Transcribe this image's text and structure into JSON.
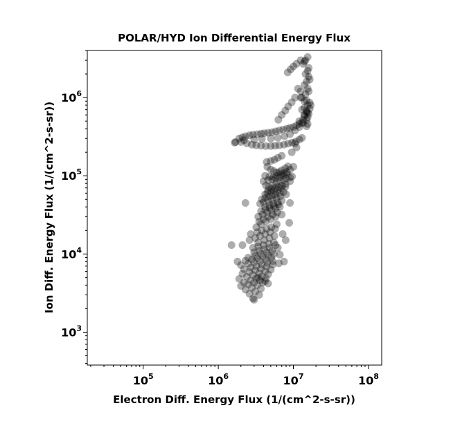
{
  "chart_data": {
    "type": "scatter",
    "title": "POLAR/HYD  Ion Differential Energy Flux",
    "xlabel": "Electron Diff. Energy Flux (1/(cm^2-s-sr))",
    "ylabel": "Ion Diff. Energy Flux (1/(cm^2-s-sr))",
    "xscale": "log",
    "yscale": "log",
    "xlim": [
      18000,
      150000000
    ],
    "ylim": [
      380,
      4000000
    ],
    "grid": false,
    "legend": "none",
    "marker_color": "#000000",
    "marker_alpha": 0.32,
    "xticks": [
      {
        "value": 100000,
        "base": "10",
        "exp": "5"
      },
      {
        "value": 1000000,
        "base": "10",
        "exp": "6"
      },
      {
        "value": 10000000,
        "base": "10",
        "exp": "7"
      },
      {
        "value": 100000000,
        "base": "10",
        "exp": "8"
      }
    ],
    "yticks": [
      {
        "value": 1000,
        "base": "10",
        "exp": "3"
      },
      {
        "value": 10000,
        "base": "10",
        "exp": "4"
      },
      {
        "value": 100000,
        "base": "10",
        "exp": "5"
      },
      {
        "value": 1000000,
        "base": "10",
        "exp": "6"
      }
    ],
    "x": [
      1700000,
      1900000,
      2100000,
      2300000,
      2600000,
      2900000,
      3300000,
      3700000,
      4100000,
      4600000,
      5200000,
      5800000,
      6500000,
      7300000,
      8200000,
      9000000,
      10000000,
      11000000,
      12000000,
      13000000,
      1650000,
      2000000,
      2400000,
      2800000,
      3200000,
      3700000,
      4300000,
      5000000,
      5700000,
      6500000,
      7500000,
      8500000,
      9600000,
      10800000,
      12000000,
      13000000,
      2200000,
      3000000,
      3800000,
      5000000,
      6200000,
      7600000,
      9000000,
      10500000,
      12000000,
      13500000,
      15000000,
      15500000,
      16000000,
      15000000,
      14000000,
      15500000,
      16500000,
      15000000,
      13000000,
      14500000,
      16000000,
      15500000,
      14000000,
      15000000,
      16500000,
      16000000,
      14500000,
      15500000,
      16000000,
      13500000,
      14500000,
      15500000,
      14000000,
      12500000,
      11000000,
      10000000,
      9200000,
      8400000,
      13000000,
      15000000,
      14000000,
      13500000,
      15500000,
      15000000,
      12000000,
      14000000,
      15500000,
      16500000,
      17000000,
      14000000,
      12500000,
      11500000,
      12500000,
      10500000,
      9500000,
      8500000,
      7800000,
      7000000,
      6300000,
      4500000,
      5000000,
      5500000,
      6000000,
      6500000,
      7000000,
      7800000,
      8500000,
      4200000,
      4800000,
      5400000,
      6000000,
      6800000,
      7500000,
      8200000,
      9000000,
      10000000,
      4000000,
      4600000,
      5200000,
      5800000,
      6600000,
      7400000,
      8200000,
      4400000,
      5000000,
      5600000,
      6200000,
      7000000,
      9500000,
      11000000,
      10500000,
      4300000,
      4700000,
      5300000,
      5900000,
      6500000,
      7300000,
      8000000,
      9000000,
      9600000,
      4600000,
      5100000,
      5700000,
      6400000,
      7100000,
      7900000,
      4200000,
      4500000,
      5000000,
      5500000,
      6200000,
      6900000,
      7800000,
      9000000,
      3800000,
      4200000,
      4700000,
      5300000,
      5800000,
      6600000,
      7400000,
      3600000,
      4000000,
      4600000,
      5200000,
      5900000,
      6700000,
      8000000,
      4200000,
      4800000,
      5400000,
      6200000,
      7000000,
      3700000,
      4200000,
      4800000,
      5500000,
      6300000,
      9000000,
      3400000,
      3900000,
      4500000,
      5100000,
      5800000,
      6600000,
      3500000,
      4000000,
      4600000,
      5300000,
      6100000,
      3200000,
      3700000,
      4300000,
      5000000,
      5800000,
      7000000,
      8800000,
      3300000,
      3800000,
      4400000,
      5100000,
      6000000,
      3100000,
      3600000,
      4200000,
      4900000,
      5700000,
      2600000,
      3400000,
      4100000,
      4800000,
      5600000,
      7200000,
      2900000,
      3400000,
      4000000,
      4700000,
      5500000,
      3000000,
      3500000,
      4100000,
      4800000,
      5800000,
      7900000,
      2500000,
      3100000,
      3700000,
      4400000,
      5200000,
      6200000,
      2300000,
      2800000,
      3300000,
      3900000,
      4600000,
      5500000,
      2000000,
      2500000,
      3000000,
      3600000,
      4300000,
      5100000,
      6600000,
      2200000,
      2700000,
      3200000,
      3800000,
      4500000,
      5300000,
      2100000,
      2600000,
      3100000,
      3700000,
      4400000,
      5300000,
      6400000,
      7500000,
      1900000,
      2400000,
      2900000,
      3500000,
      4200000,
      5000000,
      2200000,
      2700000,
      3200000,
      3800000,
      4600000,
      2000000,
      2500000,
      3000000,
      3600000,
      4300000,
      2300000,
      2800000,
      3300000,
      3900000,
      2600000,
      3100000,
      3700000,
      2900000,
      3500000,
      3000000,
      2100000,
      3400000,
      4200000,
      4600000,
      2700000,
      1500000,
      2300000,
      1800000
    ],
    "y": [
      270000,
      300000,
      310000,
      320000,
      330000,
      335000,
      340000,
      345000,
      350000,
      355000,
      360000,
      370000,
      380000,
      390000,
      400000,
      410000,
      420000,
      440000,
      460000,
      480000,
      265000,
      270000,
      260000,
      250000,
      245000,
      242000,
      240000,
      240000,
      242000,
      245000,
      250000,
      258000,
      265000,
      275000,
      290000,
      305000,
      285000,
      290000,
      295000,
      300000,
      305000,
      320000,
      340000,
      380000,
      420000,
      470000,
      520000,
      560000,
      620000,
      680000,
      740000,
      800000,
      860000,
      920000,
      1000000,
      1100000,
      1200000,
      1300000,
      1450000,
      1600000,
      1700000,
      1850000,
      2000000,
      2200000,
      2400000,
      2700000,
      3000000,
      3300000,
      2900000,
      3000000,
      2700000,
      2500000,
      2300000,
      2100000,
      700000,
      650000,
      600000,
      520000,
      460000,
      430000,
      500000,
      580000,
      640000,
      720000,
      800000,
      900000,
      1000000,
      1300000,
      1200000,
      1000000,
      870000,
      770000,
      680000,
      600000,
      520000,
      130000,
      120000,
      115000,
      110000,
      112000,
      118000,
      125000,
      132000,
      100000,
      98000,
      96000,
      100000,
      104000,
      108000,
      112000,
      120000,
      130000,
      85000,
      88000,
      90000,
      93000,
      96000,
      100000,
      105000,
      150000,
      155000,
      160000,
      170000,
      180000,
      200000,
      230000,
      260000,
      75000,
      72000,
      76000,
      80000,
      84000,
      88000,
      92000,
      95000,
      98000,
      65000,
      68000,
      70000,
      72000,
      75000,
      78000,
      58000,
      60000,
      62000,
      64000,
      66000,
      69000,
      72000,
      85000,
      50000,
      52000,
      54000,
      56000,
      58000,
      60000,
      62000,
      44000,
      46000,
      48000,
      50000,
      52000,
      55000,
      58000,
      40000,
      42000,
      44000,
      46000,
      48000,
      35000,
      37000,
      39000,
      41000,
      43000,
      45000,
      30000,
      32000,
      34000,
      36000,
      38000,
      40000,
      26000,
      28000,
      30000,
      32000,
      34000,
      22000,
      24000,
      26000,
      28000,
      30000,
      32000,
      25000,
      19000,
      20000,
      21000,
      22000,
      24000,
      16000,
      17000,
      18000,
      19000,
      21000,
      15000,
      14000,
      15000,
      16000,
      17000,
      18000,
      12000,
      12500,
      13000,
      13500,
      14000,
      10500,
      11000,
      11500,
      12000,
      13000,
      15000,
      9000,
      9500,
      10000,
      10500,
      11000,
      12000,
      8200,
      8500,
      8800,
      9200,
      9600,
      10000,
      7200,
      7500,
      7800,
      8100,
      8500,
      9000,
      9800,
      6400,
      6700,
      7000,
      7300,
      7700,
      8100,
      5600,
      5900,
      6200,
      6500,
      6900,
      7300,
      7600,
      8000,
      4800,
      5100,
      5400,
      5700,
      6000,
      6300,
      4300,
      4600,
      4900,
      5200,
      5500,
      3900,
      4100,
      4300,
      4600,
      4900,
      3500,
      3700,
      4000,
      4300,
      3100,
      3300,
      3600,
      2700,
      3000,
      2600,
      13000,
      5000,
      4500,
      4200,
      18000,
      13000,
      45000,
      8000
    ]
  }
}
